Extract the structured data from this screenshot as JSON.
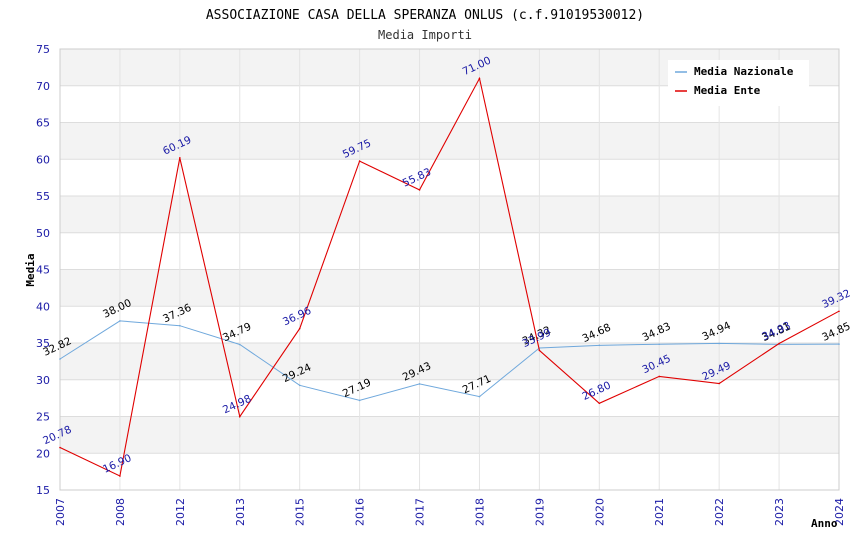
{
  "chart_data": {
    "type": "line",
    "title": "ASSOCIAZIONE CASA DELLA SPERANZA ONLUS (c.f.91019530012)",
    "subtitle": "Media Importi",
    "xlabel": "Anno",
    "ylabel": "Media",
    "ylim": [
      15,
      75
    ],
    "yticks": [
      "15",
      "20",
      "25",
      "30",
      "35",
      "40",
      "45",
      "50",
      "55",
      "60",
      "65",
      "70",
      "75"
    ],
    "categories": [
      "2007",
      "2008",
      "2012",
      "2013",
      "2015",
      "2016",
      "2017",
      "2018",
      "2019",
      "2020",
      "2021",
      "2022",
      "2023",
      "2024"
    ],
    "series": [
      {
        "name": "Media Nazionale",
        "color": "#6fa8dc",
        "values": [
          32.82,
          38.0,
          37.36,
          34.79,
          29.24,
          27.19,
          29.43,
          27.71,
          34.32,
          34.68,
          34.83,
          34.94,
          34.81,
          34.85
        ],
        "labels": [
          "32.82",
          "38.00",
          "37.36",
          "34.79",
          "29.24",
          "27.19",
          "29.43",
          "27.71",
          "34.32",
          "34.68",
          "34.83",
          "34.94",
          "34.81",
          "34.85"
        ]
      },
      {
        "name": "Media Ente",
        "color": "#e00000",
        "values": [
          20.78,
          16.9,
          60.19,
          24.98,
          36.96,
          59.75,
          55.83,
          71.0,
          33.99,
          26.8,
          30.45,
          29.49,
          34.93,
          39.32
        ],
        "labels": [
          "20.78",
          "16.90",
          "60.19",
          "24.98",
          "36.96",
          "59.75",
          "55.83",
          "71.00",
          "33.99",
          "26.80",
          "30.45",
          "29.49",
          "34.93",
          "39.32"
        ]
      }
    ],
    "grid": true,
    "legend_position": "top-right"
  }
}
